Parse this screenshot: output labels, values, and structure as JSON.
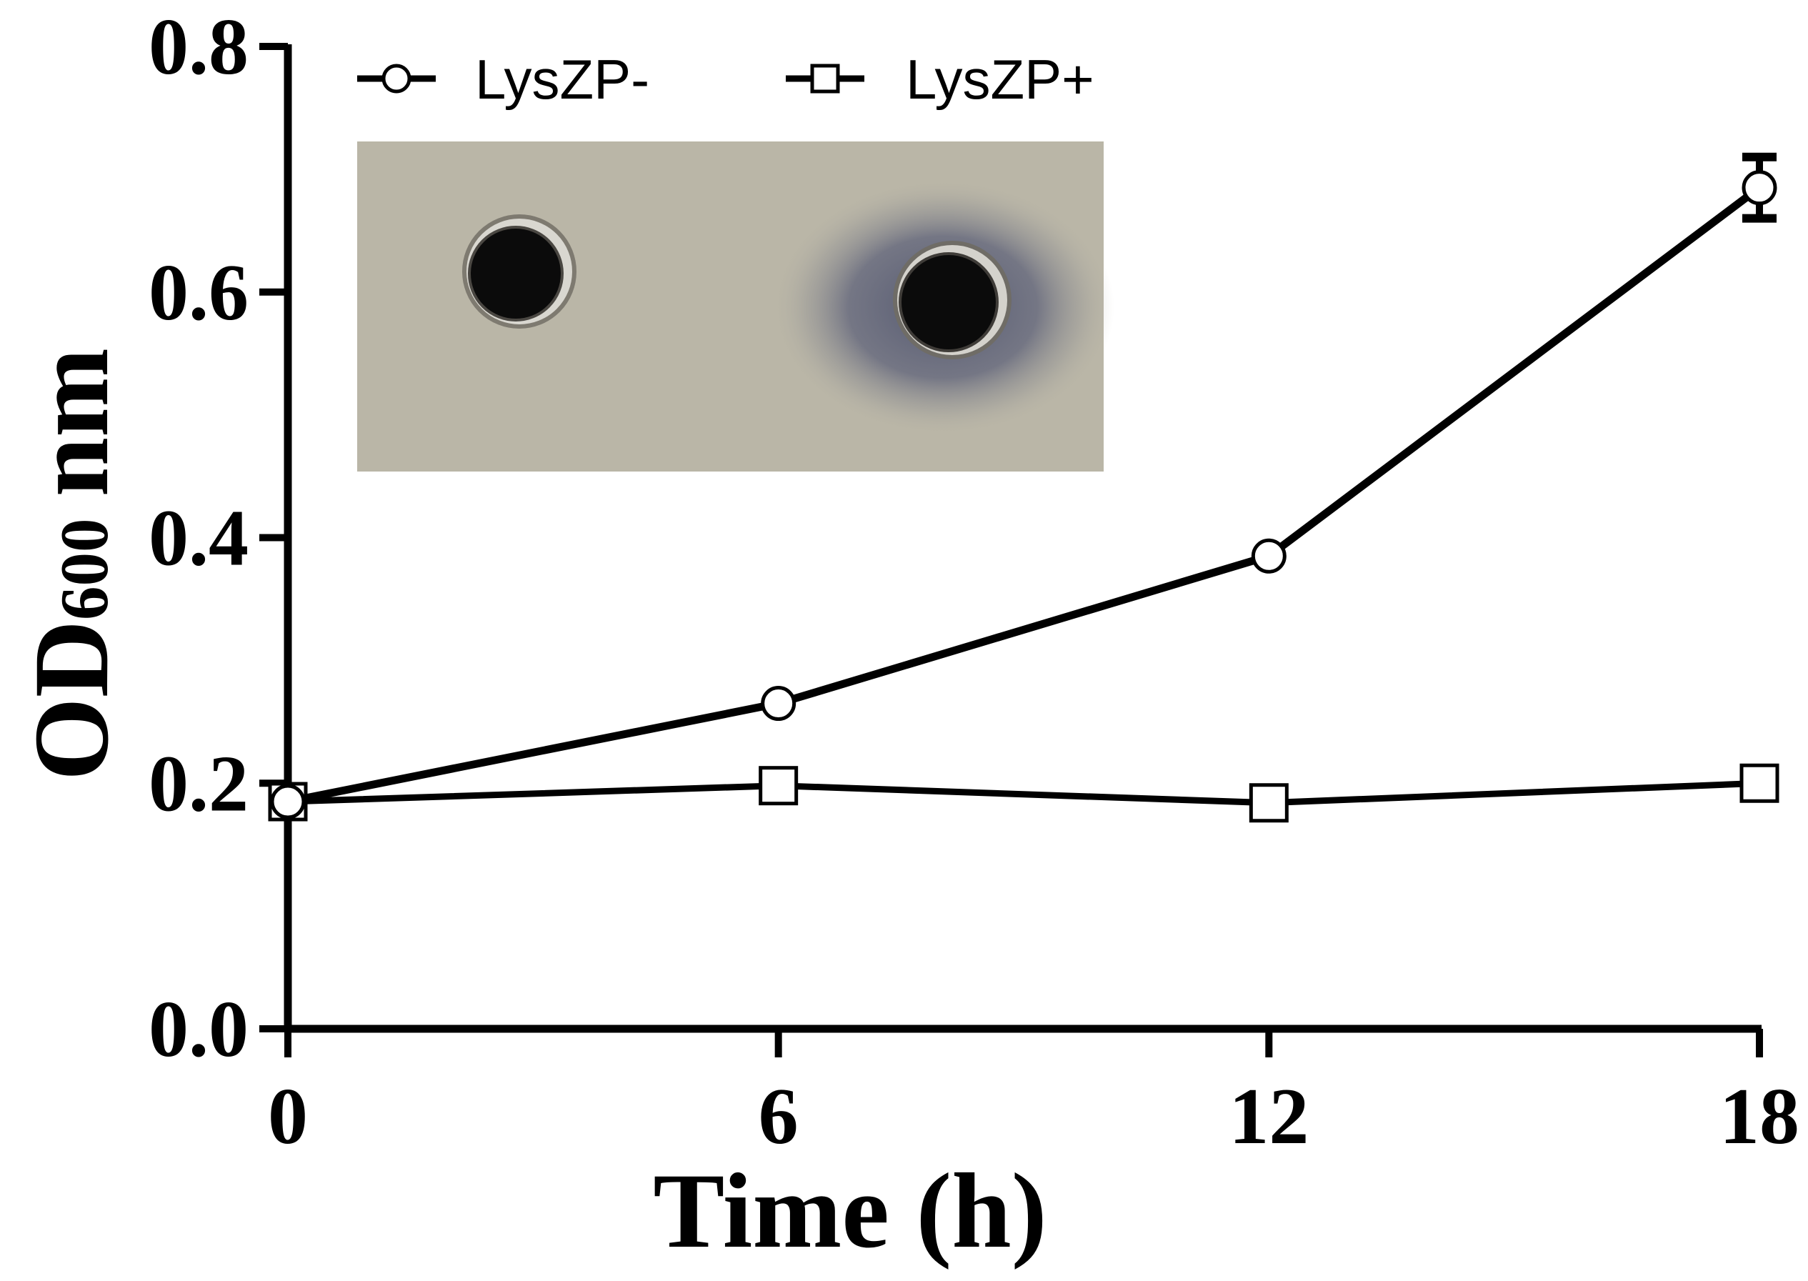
{
  "chart_data": {
    "type": "line",
    "xlabel": "Time (h)",
    "ylabel": {
      "main": "OD",
      "sub": "600",
      "unit": "nm"
    },
    "x": [
      0,
      6,
      12,
      18
    ],
    "xticks": [
      "0",
      "6",
      "12",
      "18"
    ],
    "xlim": [
      0,
      18
    ],
    "yticks": [
      "0.0",
      "0.2",
      "0.4",
      "0.6",
      "0.8"
    ],
    "ylim": [
      0,
      0.8
    ],
    "grid": false,
    "legend_position": "top-left",
    "series": [
      {
        "name": "LysZP-",
        "marker": "circle",
        "values": [
          0.185,
          0.265,
          0.385,
          0.685
        ],
        "error": [
          0.005,
          0.005,
          0.008,
          0.025
        ],
        "color": "#000000"
      },
      {
        "name": "LysZP+",
        "marker": "square",
        "values": [
          0.185,
          0.198,
          0.184,
          0.2
        ],
        "error": [
          0.004,
          0.004,
          0.004,
          0.004
        ],
        "color": "#000000"
      }
    ],
    "inset": {
      "type": "photo",
      "description_colors": {
        "agar": "#bab6a7",
        "halo": "#5b6078",
        "well": "#0a0a0a"
      }
    }
  }
}
